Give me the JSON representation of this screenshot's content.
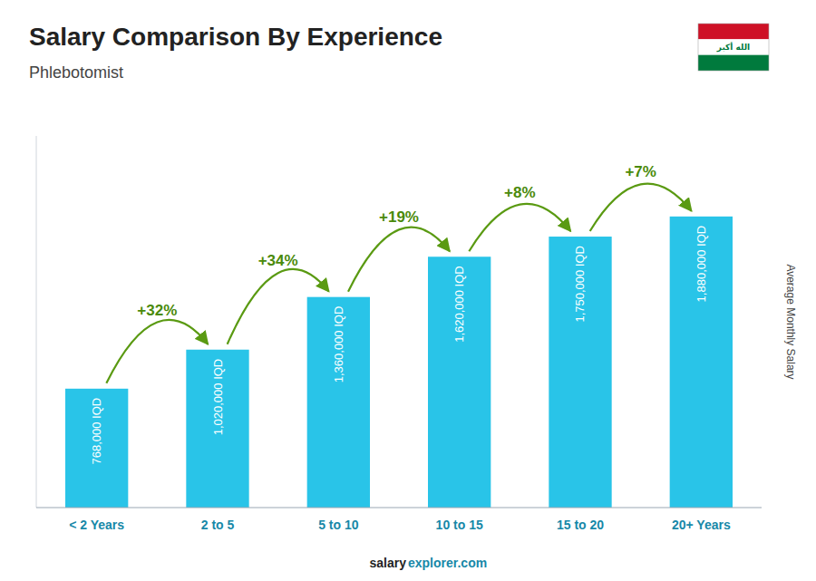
{
  "chart_data": {
    "type": "bar",
    "title": "Salary Comparison By Experience",
    "subtitle": "Phlebotomist",
    "y_label": "Average Monthly Salary",
    "categories": [
      "< 2 Years",
      "2 to 5",
      "5 to 10",
      "10 to 15",
      "15 to 20",
      "20+ Years"
    ],
    "values": [
      768000,
      1020000,
      1360000,
      1620000,
      1750000,
      1880000
    ],
    "value_labels": [
      "768,000 IQD",
      "1,020,000 IQD",
      "1,360,000 IQD",
      "1,620,000 IQD",
      "1,750,000 IQD",
      "1,880,000 IQD"
    ],
    "data_labels": true,
    "annotations": [
      "+32%",
      "+34%",
      "+19%",
      "+8%",
      "+7%"
    ],
    "footer": [
      "salary",
      "explorer.com"
    ],
    "flag": {
      "text": "الله أكبر",
      "colors": [
        "#CE1126",
        "#FFFFFF",
        "#007A3D"
      ]
    },
    "color": "#29C4E8",
    "ylim": [
      0,
      2400000
    ],
    "tick_labels": "x",
    "grid": false
  }
}
